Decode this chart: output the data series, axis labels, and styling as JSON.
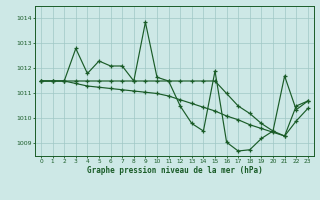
{
  "title": "Graphe pression niveau de la mer (hPa)",
  "yticks": [
    1009,
    1010,
    1011,
    1012,
    1013,
    1014
  ],
  "ylim": [
    1008.5,
    1014.5
  ],
  "xlim": [
    -0.5,
    23.5
  ],
  "background_color": "#cde8e6",
  "grid_color": "#a0c8c5",
  "line_color": "#1a5c28",
  "series1": [
    1011.5,
    1011.5,
    1011.5,
    1012.8,
    1011.8,
    1012.3,
    1012.1,
    1012.1,
    1011.5,
    1013.85,
    1011.65,
    1011.5,
    1010.5,
    1009.8,
    1009.5,
    1011.9,
    1009.05,
    1008.7,
    1008.75,
    1009.2,
    1009.5,
    1011.7,
    1010.35,
    1010.7
  ],
  "series2": [
    1011.5,
    1011.5,
    1011.5,
    1011.5,
    1011.5,
    1011.5,
    1011.5,
    1011.5,
    1011.5,
    1011.5,
    1011.5,
    1011.5,
    1011.5,
    1011.5,
    1011.5,
    1011.5,
    1011.0,
    1010.5,
    1010.2,
    1009.8,
    1009.5,
    1009.3,
    1010.5,
    1010.7
  ],
  "series3": [
    1011.5,
    1011.5,
    1011.5,
    1011.4,
    1011.3,
    1011.25,
    1011.2,
    1011.15,
    1011.1,
    1011.05,
    1011.0,
    1010.9,
    1010.75,
    1010.6,
    1010.45,
    1010.3,
    1010.1,
    1009.95,
    1009.75,
    1009.6,
    1009.45,
    1009.3,
    1009.9,
    1010.4
  ]
}
